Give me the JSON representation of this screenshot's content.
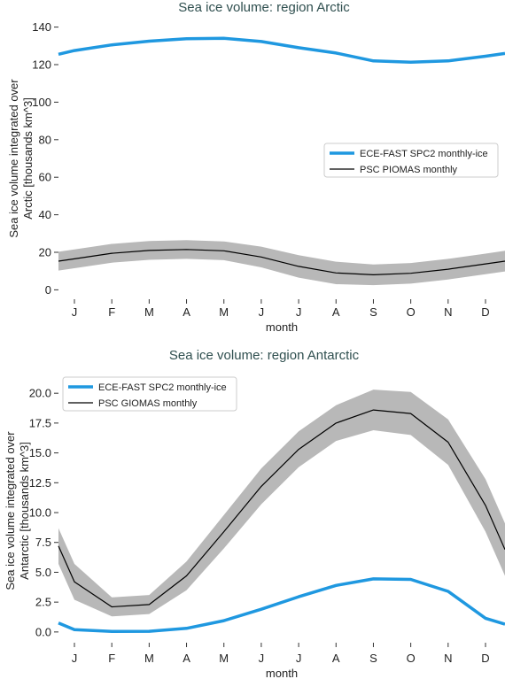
{
  "chart_data": [
    {
      "type": "line",
      "title": "Sea ice volume: region Arctic",
      "xlabel": "month",
      "ylabel_lines": [
        "Sea ice volume integrated over",
        "Arctic [thousands km^3]"
      ],
      "categories": [
        "J",
        "F",
        "M",
        "A",
        "M",
        "J",
        "J",
        "A",
        "S",
        "O",
        "N",
        "D"
      ],
      "ylim": [
        -5,
        145
      ],
      "yticks": [
        0,
        20,
        40,
        60,
        80,
        100,
        120,
        140
      ],
      "ytick_labels": [
        "0",
        "20",
        "40",
        "60",
        "80",
        "100",
        "120",
        "140"
      ],
      "legend_position": "center-right",
      "series": [
        {
          "name": "ECE-FAST SPC2 monthly-ice",
          "color": "#1f98e0",
          "values": [
            127.5,
            130.5,
            132.5,
            133.8,
            134.0,
            132.3,
            129.0,
            126.2,
            122.0,
            121.3,
            122.0,
            124.5
          ],
          "x_start": 125.5,
          "x_end": 126.0
        },
        {
          "name": "PSC PIOMAS monthly",
          "color": "#000000",
          "values": [
            16.5,
            19.5,
            21.0,
            21.5,
            20.8,
            17.5,
            12.5,
            9.0,
            8.0,
            8.8,
            11.0,
            13.8
          ],
          "band": [
            5,
            5,
            5,
            5,
            5,
            5.5,
            6,
            6,
            5.5,
            5.5,
            5.5,
            5.5
          ],
          "x_start": 15.3,
          "x_end": 15.3
        }
      ]
    },
    {
      "type": "line",
      "title": "Sea ice volume: region Antarctic",
      "xlabel": "month",
      "ylabel_lines": [
        "Sea ice volume integrated over",
        "Antarctic [thousands km^3]"
      ],
      "categories": [
        "J",
        "F",
        "M",
        "A",
        "M",
        "J",
        "J",
        "A",
        "S",
        "O",
        "N",
        "D"
      ],
      "ylim": [
        -0.9,
        21.2
      ],
      "yticks": [
        0,
        2.5,
        5,
        7.5,
        10,
        12.5,
        15,
        17.5,
        20
      ],
      "ytick_labels": [
        "0.0",
        "2.5",
        "5.0",
        "7.5",
        "10.0",
        "12.5",
        "15.0",
        "17.5",
        "20.0"
      ],
      "legend_position": "top-left",
      "series": [
        {
          "name": "ECE-FAST SPC2 monthly-ice",
          "color": "#1f98e0",
          "values": [
            0.2,
            0.05,
            0.06,
            0.3,
            0.95,
            1.9,
            2.95,
            3.9,
            4.45,
            4.4,
            3.4,
            1.15
          ],
          "x_start": 0.75,
          "x_end": 0.65
        },
        {
          "name": "PSC GIOMAS monthly",
          "color": "#000000",
          "values": [
            4.2,
            2.1,
            2.3,
            4.7,
            8.4,
            12.2,
            15.3,
            17.5,
            18.6,
            18.3,
            15.9,
            10.6
          ],
          "band": [
            1.5,
            0.8,
            0.8,
            1.2,
            1.4,
            1.5,
            1.5,
            1.5,
            1.7,
            1.8,
            1.9,
            2.2
          ],
          "x_start": 7.2,
          "x_end": 6.9
        }
      ]
    }
  ]
}
